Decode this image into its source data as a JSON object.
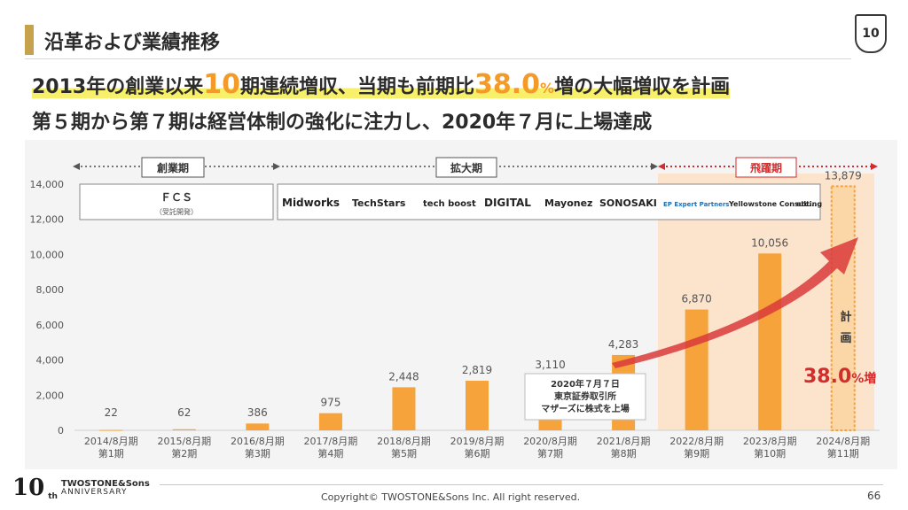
{
  "header": {
    "title": "沿革および業績推移",
    "badge": "10"
  },
  "headline": {
    "line1_a": "2013年の創業以来",
    "line1_num1": "10",
    "line1_b": "期連続増収、当期も前期比",
    "line1_num2": "38.0",
    "line1_unit": "%",
    "line1_c": "増の大幅増収を計画",
    "line2": "第５期から第７期は経営体制の強化に注力し、2020年７月に上場達成"
  },
  "phases": {
    "founding": "創業期",
    "expansion": "拡大期",
    "leap": "飛躍期"
  },
  "fcs": {
    "name": "ＦＣＳ",
    "sub": "（受託開発）"
  },
  "brands": [
    "Midworks",
    "TechStars",
    "tech boost",
    "DIGITAL",
    "Mayonez",
    "SONOSAKI",
    "EP Expert Partners",
    "Yellowstone Consulting",
    "etc..."
  ],
  "listing_note": [
    "2020年７月７日",
    "東京証券取引所",
    "マザーズに株式を上場"
  ],
  "plan": {
    "label": "計画",
    "growth": "38.0",
    "growth_unit": "%増"
  },
  "colors": {
    "bar": "#f5a33a",
    "bar_plan_outline": "#f5a33a",
    "leap_bg": "#fbe3cc",
    "arrow": "#d93a3a",
    "phase_founding": "#555555",
    "phase_leap": "#d22d2d",
    "highlight": "#f8f06a"
  },
  "chart_data": {
    "type": "bar",
    "categories": [
      "2014/8月期 第1期",
      "2015/8月期 第2期",
      "2016/8月期 第3期",
      "2017/8月期 第4期",
      "2018/8月期 第5期",
      "2019/8月期 第6期",
      "2020/8月期 第7期",
      "2021/8月期 第8期",
      "2022/8月期 第9期",
      "2023/8月期 第10期",
      "2024/8月期 第11期"
    ],
    "category_lines": [
      [
        "2014/8月期",
        "第1期"
      ],
      [
        "2015/8月期",
        "第2期"
      ],
      [
        "2016/8月期",
        "第3期"
      ],
      [
        "2017/8月期",
        "第4期"
      ],
      [
        "2018/8月期",
        "第5期"
      ],
      [
        "2019/8月期",
        "第6期"
      ],
      [
        "2020/8月期",
        "第7期"
      ],
      [
        "2021/8月期",
        "第8期"
      ],
      [
        "2022/8月期",
        "第9期"
      ],
      [
        "2023/8月期",
        "第10期"
      ],
      [
        "2024/8月期",
        "第11期"
      ]
    ],
    "values": [
      22,
      62,
      386,
      975,
      2448,
      2819,
      3110,
      4283,
      6870,
      10056,
      13879
    ],
    "value_labels": [
      "22",
      "62",
      "386",
      "975",
      "2,448",
      "2,819",
      "3,110",
      "4,283",
      "6,870",
      "10,056",
      "13,879"
    ],
    "planned": [
      false,
      false,
      false,
      false,
      false,
      false,
      false,
      false,
      false,
      false,
      true
    ],
    "ylim": [
      0,
      14000
    ],
    "yticks": [
      0,
      2000,
      4000,
      6000,
      8000,
      10000,
      12000,
      14000
    ],
    "ytick_labels": [
      "0",
      "2,000",
      "4,000",
      "6,000",
      "8,000",
      "10,000",
      "12,000",
      "14,000"
    ],
    "title": "",
    "xlabel": "",
    "ylabel": "",
    "grid": false
  },
  "footer": {
    "logo_num": "10",
    "logo_sup": "th",
    "brand": "TWOSTONE&Sons",
    "brand_sub": "ANNIVERSARY",
    "copyright": "Copyright© TWOSTONE&Sons Inc. All right reserved.",
    "page": "66"
  }
}
